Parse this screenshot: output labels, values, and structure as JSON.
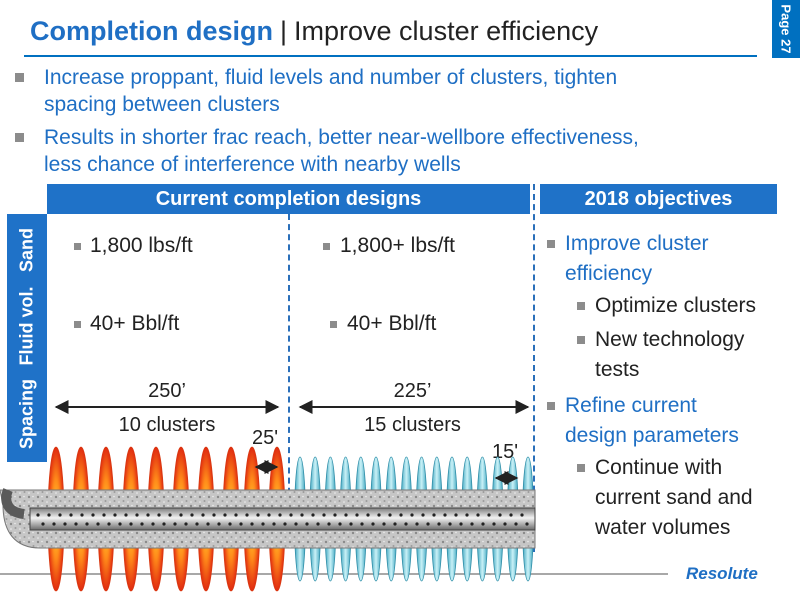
{
  "header": {
    "title_main": "Completion design",
    "separator": "|",
    "title_sub": "Improve cluster efficiency",
    "page_label": "Page 27"
  },
  "bullets": [
    {
      "lines": [
        "Increase proppant, fluid levels and number of clusters, tighten",
        "spacing between clusters"
      ]
    },
    {
      "lines": [
        "Results in shorter frac reach, better near-wellbore effectiveness,",
        "less chance of interference with nearby wells"
      ]
    }
  ],
  "table": {
    "current_header": "Current completion designs",
    "objectives_header": "2018 objectives",
    "row_labels": [
      "Sand",
      "Fluid vol.",
      "Spacing"
    ],
    "design_a": {
      "sand": "1,800 lbs/ft",
      "fluid": "40+ Bbl/ft",
      "spacing": "250’",
      "clusters": "10 clusters",
      "cluster_gap": "25'"
    },
    "design_b": {
      "sand": "1,800+ lbs/ft",
      "fluid": "40+ Bbl/ft",
      "spacing": "225’",
      "clusters": "15 clusters",
      "cluster_gap": "15'"
    }
  },
  "objectives": [
    {
      "level": 1,
      "lines": [
        "Improve cluster",
        "efficiency"
      ]
    },
    {
      "level": 2,
      "lines": [
        "Optimize clusters"
      ]
    },
    {
      "level": 2,
      "lines": [
        "New technology",
        "tests"
      ]
    },
    {
      "level": 1,
      "lines": [
        "Refine current",
        "design parameters"
      ]
    },
    {
      "level": 2,
      "lines": [
        "Continue with",
        "current sand and",
        "water volumes"
      ]
    }
  ],
  "logo": "Resolute",
  "colors": {
    "accent": "#1f72c8",
    "title_blue": "#1f6fc4",
    "hot_frac": "#e83a14",
    "cool_frac": "#6ec5d6"
  }
}
